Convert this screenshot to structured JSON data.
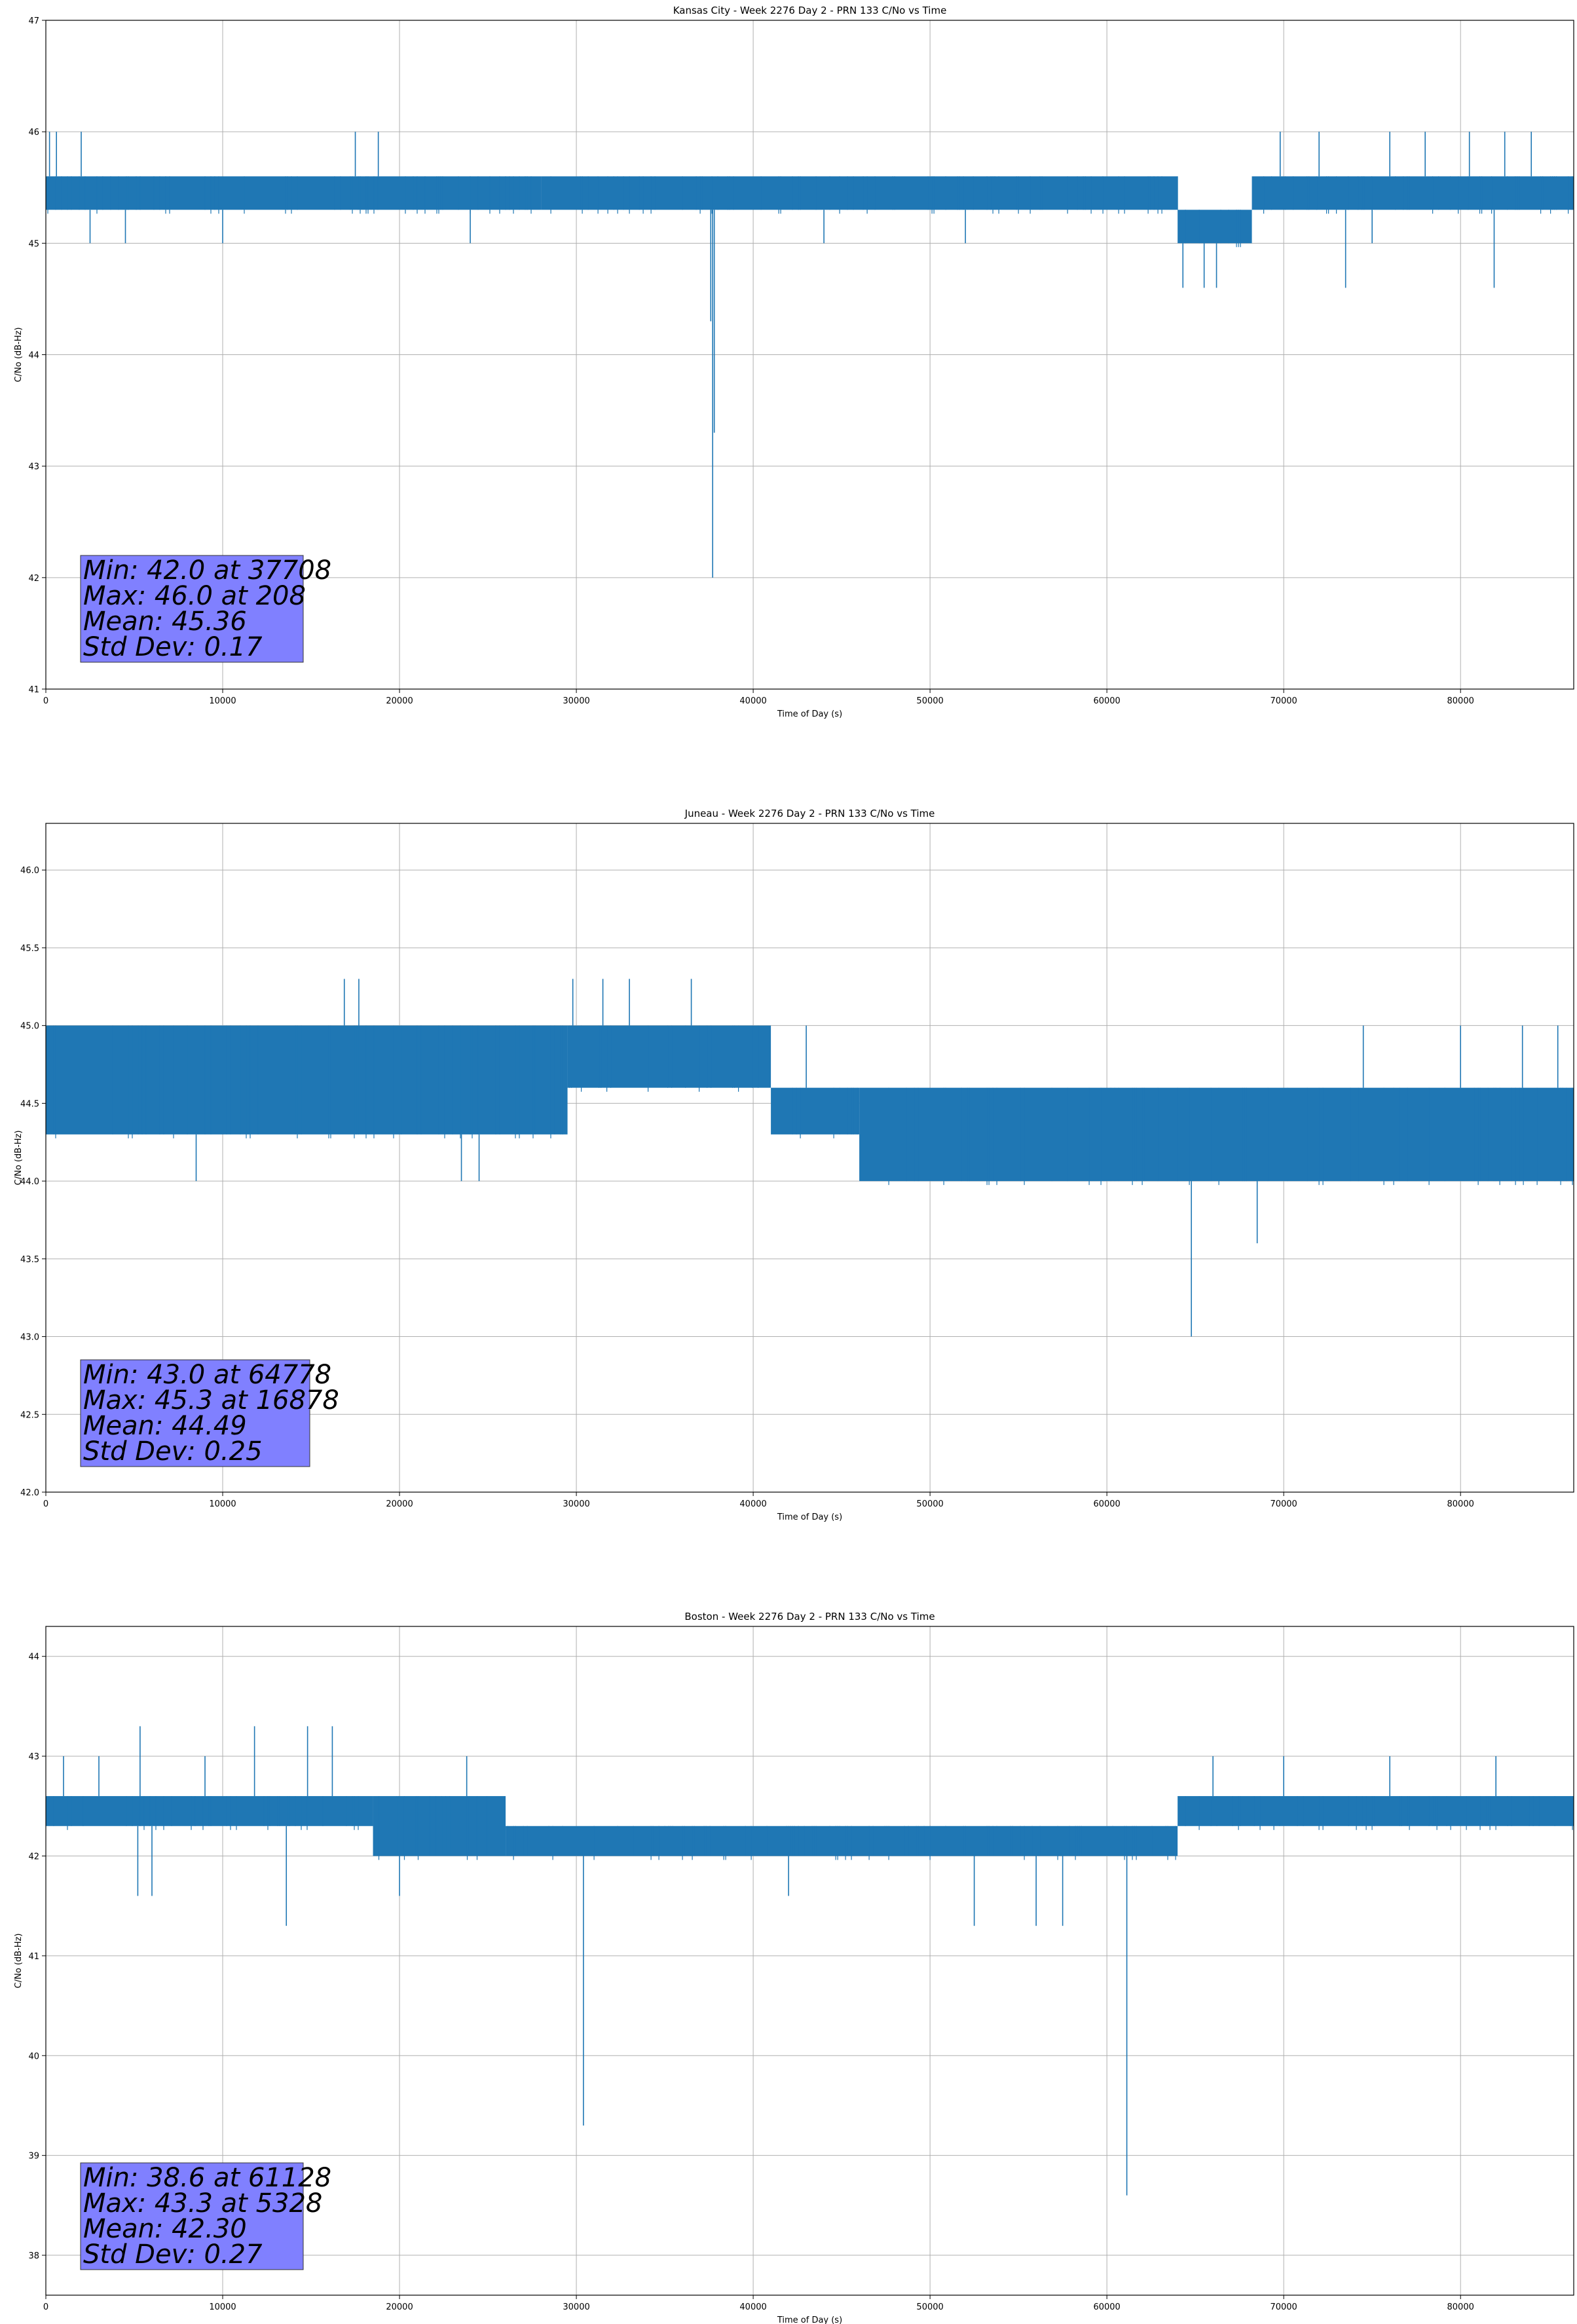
{
  "figure": {
    "colors": {
      "line": "#1f77b4",
      "grid": "#b0b0b0",
      "statbox": "#8080ff"
    }
  },
  "chart_data": [
    {
      "type": "line",
      "title": "Kansas City - Week 2276 Day 2 - PRN 133 C/No vs Time",
      "xlabel": "Time of Day (s)",
      "ylabel": "C/No (dB-Hz)",
      "xlim": [
        0,
        86400
      ],
      "ylim": [
        41,
        47
      ],
      "xticks": [
        0,
        10000,
        20000,
        30000,
        40000,
        50000,
        60000,
        70000,
        80000
      ],
      "xtick_labels": [
        "0",
        "10000",
        "20000",
        "30000",
        "40000",
        "50000",
        "60000",
        "70000",
        "80000"
      ],
      "yticks": [
        41,
        42,
        43,
        44,
        45,
        46,
        47
      ],
      "ytick_labels": [
        "41",
        "42",
        "43",
        "44",
        "45",
        "46",
        "47"
      ],
      "grid": true,
      "series": [
        {
          "band": [
            {
              "x": [
                0,
                28000
              ],
              "low": 45.3,
              "high": 45.6
            },
            {
              "x": [
                28000,
                64000
              ],
              "low": 45.3,
              "high": 45.6
            },
            {
              "x": [
                64000,
                68200
              ],
              "low": 45.0,
              "high": 45.3
            },
            {
              "x": [
                68200,
                86400
              ],
              "low": 45.3,
              "high": 45.6
            }
          ],
          "spikes": [
            {
              "x": 208,
              "y": 46.0
            },
            {
              "x": 600,
              "y": 46.0
            },
            {
              "x": 2000,
              "y": 46.0
            },
            {
              "x": 17500,
              "y": 46.0
            },
            {
              "x": 18800,
              "y": 46.0
            },
            {
              "x": 69800,
              "y": 46.0
            },
            {
              "x": 72000,
              "y": 46.0
            },
            {
              "x": 76000,
              "y": 46.0
            },
            {
              "x": 78000,
              "y": 46.0
            },
            {
              "x": 80500,
              "y": 46.0
            },
            {
              "x": 82500,
              "y": 46.0
            },
            {
              "x": 84000,
              "y": 46.0
            },
            {
              "x": 37708,
              "y": 42.0
            },
            {
              "x": 37800,
              "y": 43.3
            },
            {
              "x": 37600,
              "y": 44.3
            },
            {
              "x": 64300,
              "y": 44.6
            },
            {
              "x": 65500,
              "y": 44.6
            },
            {
              "x": 66200,
              "y": 44.6
            },
            {
              "x": 73500,
              "y": 44.6
            },
            {
              "x": 81900,
              "y": 44.6
            },
            {
              "x": 2500,
              "y": 45.0
            },
            {
              "x": 4500,
              "y": 45.0
            },
            {
              "x": 10000,
              "y": 45.0
            },
            {
              "x": 24000,
              "y": 45.0
            },
            {
              "x": 44000,
              "y": 45.0
            },
            {
              "x": 52000,
              "y": 45.0
            },
            {
              "x": 75000,
              "y": 45.0
            }
          ]
        }
      ],
      "stats": {
        "min": "Min: 42.0 at 37708",
        "max": "Max: 46.0 at 208",
        "mean": "Mean: 45.36",
        "std": "Std Dev: 0.17"
      }
    },
    {
      "type": "line",
      "title": "Juneau - Week 2276 Day 2 - PRN 133 C/No vs Time",
      "xlabel": "Time of Day (s)",
      "ylabel": "C/No (dB-Hz)",
      "xlim": [
        0,
        86400
      ],
      "ylim": [
        42.0,
        46.3
      ],
      "xticks": [
        0,
        10000,
        20000,
        30000,
        40000,
        50000,
        60000,
        70000,
        80000
      ],
      "xtick_labels": [
        "0",
        "10000",
        "20000",
        "30000",
        "40000",
        "50000",
        "60000",
        "70000",
        "80000"
      ],
      "yticks": [
        42.0,
        42.5,
        43.0,
        43.5,
        44.0,
        44.5,
        45.0,
        45.5,
        46.0
      ],
      "ytick_labels": [
        "42.0",
        "42.5",
        "43.0",
        "43.5",
        "44.0",
        "44.5",
        "45.0",
        "45.5",
        "46.0"
      ],
      "grid": true,
      "series": [
        {
          "band": [
            {
              "x": [
                0,
                29500
              ],
              "low": 44.3,
              "high": 45.0
            },
            {
              "x": [
                29500,
                41000
              ],
              "low": 44.6,
              "high": 45.0
            },
            {
              "x": [
                41000,
                46000
              ],
              "low": 44.3,
              "high": 44.6
            },
            {
              "x": [
                46000,
                86400
              ],
              "low": 44.0,
              "high": 44.6
            }
          ],
          "spikes": [
            {
              "x": 8500,
              "y": 44.0
            },
            {
              "x": 23500,
              "y": 44.0
            },
            {
              "x": 24500,
              "y": 44.0
            },
            {
              "x": 16878,
              "y": 45.3
            },
            {
              "x": 17700,
              "y": 45.3
            },
            {
              "x": 29800,
              "y": 45.3
            },
            {
              "x": 31500,
              "y": 45.3
            },
            {
              "x": 33000,
              "y": 45.3
            },
            {
              "x": 36500,
              "y": 45.3
            },
            {
              "x": 43000,
              "y": 45.0
            },
            {
              "x": 74500,
              "y": 45.0
            },
            {
              "x": 80000,
              "y": 45.0
            },
            {
              "x": 83500,
              "y": 45.0
            },
            {
              "x": 85500,
              "y": 45.0
            },
            {
              "x": 64778,
              "y": 43.0
            },
            {
              "x": 68500,
              "y": 43.6
            }
          ]
        }
      ],
      "stats": {
        "min": "Min: 43.0 at 64778",
        "max": "Max: 45.3 at 16878",
        "mean": "Mean: 44.49",
        "std": "Std Dev: 0.25"
      }
    },
    {
      "type": "line",
      "title": "Boston - Week 2276 Day 2 - PRN 133 C/No vs Time",
      "xlabel": "Time of Day (s)",
      "ylabel": "C/No (dB-Hz)",
      "xlim": [
        0,
        86400
      ],
      "ylim": [
        37.6,
        44.3
      ],
      "xticks": [
        0,
        10000,
        20000,
        30000,
        40000,
        50000,
        60000,
        70000,
        80000
      ],
      "xtick_labels": [
        "0",
        "10000",
        "20000",
        "30000",
        "40000",
        "50000",
        "60000",
        "70000",
        "80000"
      ],
      "yticks": [
        38,
        39,
        40,
        41,
        42,
        43,
        44
      ],
      "ytick_labels": [
        "38",
        "39",
        "40",
        "41",
        "42",
        "43",
        "44"
      ],
      "grid": true,
      "series": [
        {
          "band": [
            {
              "x": [
                0,
                18500
              ],
              "low": 42.3,
              "high": 42.6
            },
            {
              "x": [
                18500,
                26000
              ],
              "low": 42.0,
              "high": 42.6
            },
            {
              "x": [
                26000,
                64000
              ],
              "low": 42.0,
              "high": 42.3
            },
            {
              "x": [
                64000,
                86400
              ],
              "low": 42.3,
              "high": 42.6
            }
          ],
          "spikes": [
            {
              "x": 5328,
              "y": 43.3
            },
            {
              "x": 11800,
              "y": 43.3
            },
            {
              "x": 14800,
              "y": 43.3
            },
            {
              "x": 16200,
              "y": 43.3
            },
            {
              "x": 1000,
              "y": 43.0
            },
            {
              "x": 3000,
              "y": 43.0
            },
            {
              "x": 9000,
              "y": 43.0
            },
            {
              "x": 23800,
              "y": 43.0
            },
            {
              "x": 66000,
              "y": 43.0
            },
            {
              "x": 70000,
              "y": 43.0
            },
            {
              "x": 76000,
              "y": 43.0
            },
            {
              "x": 82000,
              "y": 43.0
            },
            {
              "x": 13600,
              "y": 41.3
            },
            {
              "x": 5200,
              "y": 41.6
            },
            {
              "x": 6000,
              "y": 41.6
            },
            {
              "x": 20000,
              "y": 41.6
            },
            {
              "x": 42000,
              "y": 41.6
            },
            {
              "x": 52500,
              "y": 41.3
            },
            {
              "x": 56000,
              "y": 41.3
            },
            {
              "x": 57500,
              "y": 41.3
            },
            {
              "x": 30400,
              "y": 39.3
            },
            {
              "x": 61128,
              "y": 38.6
            }
          ]
        }
      ],
      "stats": {
        "min": "Min: 38.6 at 61128",
        "max": "Max: 43.3 at 5328",
        "mean": "Mean: 42.30",
        "std": "Std Dev: 0.27"
      }
    }
  ]
}
